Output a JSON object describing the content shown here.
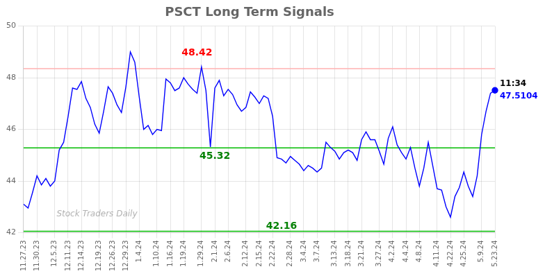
{
  "chart_data": {
    "type": "line",
    "title": "PSCT Long Term Signals",
    "categories": [
      "11.27.23",
      null,
      null,
      "11.30.23",
      null,
      null,
      null,
      "12.5.23",
      null,
      null,
      "12.11.23",
      null,
      null,
      "12.14.23",
      null,
      null,
      null,
      "12.19.23",
      null,
      null,
      "12.26.23",
      null,
      null,
      "12.29.23",
      null,
      null,
      "1.4.24",
      null,
      null,
      null,
      "1.10.24",
      null,
      null,
      "1.16.24",
      null,
      null,
      "1.19.24",
      null,
      null,
      null,
      "1.29.24",
      null,
      null,
      "2.1.24",
      null,
      null,
      "2.6.24",
      null,
      null,
      null,
      "2.12.24",
      null,
      null,
      "2.15.24",
      null,
      null,
      "2.22.24",
      null,
      null,
      null,
      "2.28.24",
      null,
      null,
      "3.4.24",
      null,
      null,
      "3.7.24",
      null,
      null,
      null,
      "3.13.24",
      null,
      null,
      "3.18.24",
      null,
      null,
      "3.21.24",
      null,
      null,
      null,
      "3.27.24",
      null,
      null,
      "4.2.24",
      null,
      null,
      "4.4.24",
      null,
      null,
      "4.8.24",
      null,
      null,
      null,
      "4.11.24",
      null,
      null,
      "4.22.24",
      null,
      null,
      "4.25.24",
      null,
      null,
      null,
      "5.9.24",
      null,
      null,
      "5.23.24"
    ],
    "series": [
      {
        "color": "blue",
        "marker": "last",
        "values": [
          43.1,
          42.95,
          43.55,
          44.2,
          43.85,
          44.1,
          43.8,
          44.0,
          45.2,
          45.5,
          46.5,
          47.6,
          47.55,
          47.85,
          47.2,
          46.85,
          46.2,
          45.85,
          46.7,
          47.65,
          47.4,
          46.95,
          46.65,
          47.65,
          49.0,
          48.6,
          47.25,
          46.0,
          46.15,
          45.8,
          46.0,
          45.95,
          47.95,
          47.8,
          47.5,
          47.6,
          48.0,
          47.75,
          47.55,
          47.4,
          48.42,
          47.5,
          45.32,
          47.6,
          47.9,
          47.3,
          47.55,
          47.35,
          46.95,
          46.7,
          46.85,
          47.45,
          47.25,
          47.0,
          47.3,
          47.2,
          46.5,
          44.9,
          44.85,
          44.7,
          44.95,
          44.8,
          44.65,
          44.4,
          44.6,
          44.5,
          44.35,
          44.5,
          45.5,
          45.3,
          45.15,
          44.85,
          45.1,
          45.2,
          45.1,
          44.8,
          45.6,
          45.9,
          45.6,
          45.6,
          45.15,
          44.65,
          45.65,
          46.1,
          45.4,
          45.1,
          44.85,
          45.3,
          44.5,
          43.8,
          44.5,
          45.5,
          44.6,
          43.7,
          43.65,
          43.0,
          42.6,
          43.4,
          43.75,
          44.35,
          43.8,
          43.4,
          44.2,
          45.8,
          46.7,
          47.4,
          47.5104
        ]
      }
    ],
    "ylim": [
      42,
      50
    ],
    "yticks": [
      42,
      44,
      46,
      48,
      50
    ],
    "grid": true,
    "hlines": [
      {
        "y": 48.35,
        "color": "#ffb0b0"
      },
      {
        "y": 45.28,
        "color": "#00bb00"
      },
      {
        "y": 42.05,
        "color": "#00bb00"
      }
    ],
    "watermark": "Stock Traders Daily",
    "annotations": [
      {
        "text": "48.42",
        "color": "red",
        "x": 39,
        "y": 48.85
      },
      {
        "text": "45.32",
        "color": "green",
        "x": 43,
        "y": 44.85
      },
      {
        "text": "42.16",
        "color": "green",
        "x": 58,
        "y": 42.16
      },
      {
        "text": "11:34",
        "color": "black",
        "x": 106,
        "y": 47.5104,
        "position": "above-right"
      },
      {
        "text": "47.5104",
        "color": "blue",
        "x": 106,
        "y": 47.5104,
        "position": "below-right"
      }
    ]
  }
}
